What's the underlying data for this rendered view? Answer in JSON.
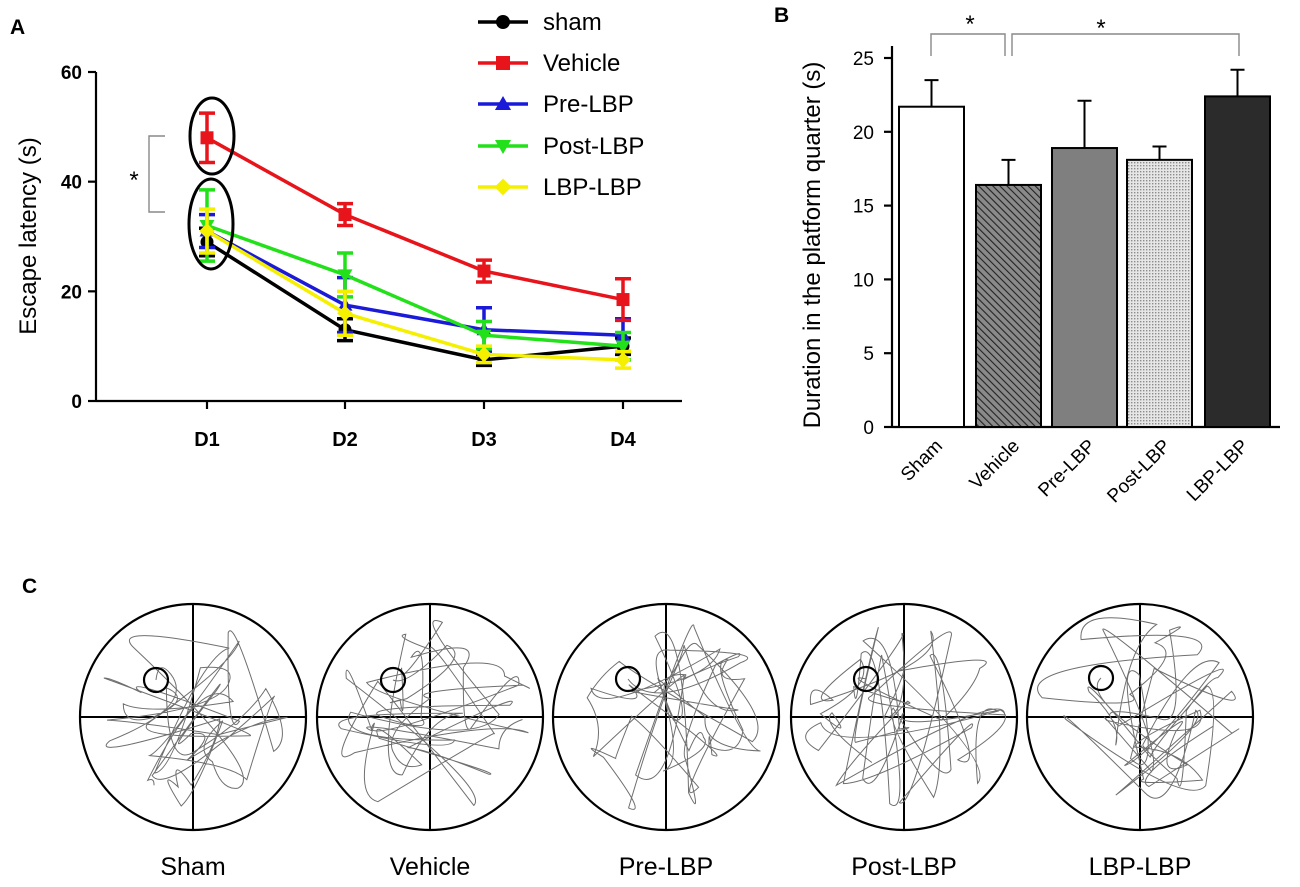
{
  "panels": {
    "a": "A",
    "b": "B",
    "c": "C"
  },
  "chart_data": [
    {
      "type": "line",
      "panel": "A",
      "xlabel": "",
      "ylabel": "Escape latency (s)",
      "categories": [
        "D1",
        "D2",
        "D3",
        "D4"
      ],
      "ylim": [
        0,
        60
      ],
      "yticks": [
        0,
        20,
        40,
        60
      ],
      "series": [
        {
          "name": "sham",
          "color": "#000000",
          "marker": "circle",
          "values": [
            29,
            13,
            7.5,
            10
          ],
          "errors": [
            2.5,
            2,
            1,
            1.5
          ]
        },
        {
          "name": "Vehicle",
          "color": "#e8141b",
          "marker": "square",
          "values": [
            48,
            34,
            23.7,
            18.5
          ],
          "errors": [
            4.5,
            2,
            2,
            3.8
          ]
        },
        {
          "name": "Pre-LBP",
          "color": "#1a1ad8",
          "marker": "triangle-up",
          "values": [
            31,
            17.5,
            13,
            12
          ],
          "errors": [
            3,
            5,
            4,
            3
          ]
        },
        {
          "name": "Post-LBP",
          "color": "#22e019",
          "marker": "triangle-down",
          "values": [
            32,
            23,
            12,
            10
          ],
          "errors": [
            6.5,
            4,
            2.5,
            2.5
          ]
        },
        {
          "name": "LBP-LBP",
          "color": "#f5ef00",
          "marker": "diamond",
          "values": [
            31,
            16,
            8.5,
            7.5
          ],
          "errors": [
            4,
            4,
            1.5,
            1.5
          ]
        }
      ],
      "annotations": [
        "*"
      ]
    },
    {
      "type": "bar",
      "panel": "B",
      "ylabel": "Duration in  the platform quarter (s)",
      "categories": [
        "Sham",
        "Vehicle",
        "Pre-LBP",
        "Post-LBP",
        "LBP-LBP"
      ],
      "values": [
        21.7,
        16.4,
        18.9,
        18.1,
        22.4
      ],
      "errors": [
        1.8,
        1.7,
        3.2,
        0.9,
        1.8
      ],
      "fills": [
        "white",
        "diagonal-hatch",
        "#7f7f7f",
        "dotted-light",
        "#2b2b2b"
      ],
      "ylim": [
        0,
        25
      ],
      "yticks": [
        0,
        5,
        10,
        15,
        20,
        25
      ],
      "annotations": [
        "*",
        "*"
      ]
    }
  ],
  "maze_panel": {
    "labels": [
      "Sham",
      "Vehicle",
      "Pre-LBP",
      "Post-LBP",
      "LBP-LBP"
    ]
  }
}
